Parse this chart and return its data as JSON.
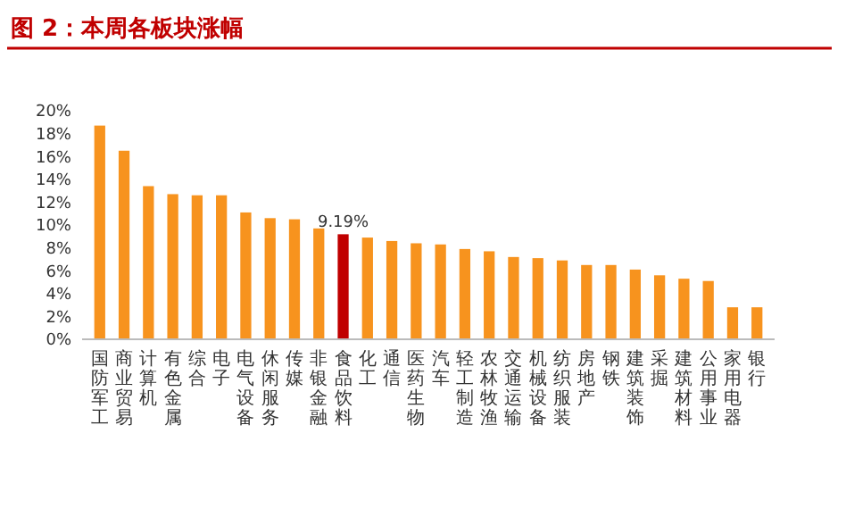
{
  "chart_data": {
    "type": "bar",
    "title": "图 2：本周各板块涨幅",
    "categories": [
      "国防军工",
      "商业贸易",
      "计算机",
      "有色金属",
      "综合",
      "电子",
      "电气设备",
      "休闲服务",
      "传媒",
      "非银金融",
      "食品饮料",
      "化工",
      "通信",
      "医药生物",
      "汽车",
      "轻工制造",
      "农林牧渔",
      "交通运输",
      "机械设备",
      "纺织服装",
      "房地产",
      "钢铁",
      "建筑装饰",
      "采掘",
      "建筑材料",
      "公用事业",
      "家用电器",
      "银行"
    ],
    "values": [
      18.7,
      16.5,
      13.4,
      12.7,
      12.6,
      12.6,
      11.1,
      10.6,
      10.5,
      9.7,
      9.19,
      8.9,
      8.6,
      8.4,
      8.3,
      7.9,
      7.7,
      7.2,
      7.1,
      6.9,
      6.5,
      6.5,
      6.1,
      5.6,
      5.3,
      5.1,
      2.8,
      2.8
    ],
    "colors": [
      "#f7931e",
      "#f7931e",
      "#f7931e",
      "#f7931e",
      "#f7931e",
      "#f7931e",
      "#f7931e",
      "#f7931e",
      "#f7931e",
      "#f7931e",
      "#c00000",
      "#f7931e",
      "#f7931e",
      "#f7931e",
      "#f7931e",
      "#f7931e",
      "#f7931e",
      "#f7931e",
      "#f7931e",
      "#f7931e",
      "#f7931e",
      "#f7931e",
      "#f7931e",
      "#f7931e",
      "#f7931e",
      "#f7931e",
      "#f7931e",
      "#f7931e"
    ],
    "value_labels": [
      null,
      null,
      null,
      null,
      null,
      null,
      null,
      null,
      null,
      null,
      "9.19%",
      null,
      null,
      null,
      null,
      null,
      null,
      null,
      null,
      null,
      null,
      null,
      null,
      null,
      null,
      null,
      null,
      null
    ],
    "ylim": [
      0,
      20
    ],
    "yticks": [
      {
        "value": 0,
        "label": "0%"
      },
      {
        "value": 2,
        "label": "2%"
      },
      {
        "value": 4,
        "label": "4%"
      },
      {
        "value": 6,
        "label": "6%"
      },
      {
        "value": 8,
        "label": "8%"
      },
      {
        "value": 10,
        "label": "10%"
      },
      {
        "value": 12,
        "label": "12%"
      },
      {
        "value": 14,
        "label": "14%"
      },
      {
        "value": 16,
        "label": "16%"
      },
      {
        "value": 18,
        "label": "18%"
      },
      {
        "value": 20,
        "label": "20%"
      }
    ],
    "grid": false
  }
}
